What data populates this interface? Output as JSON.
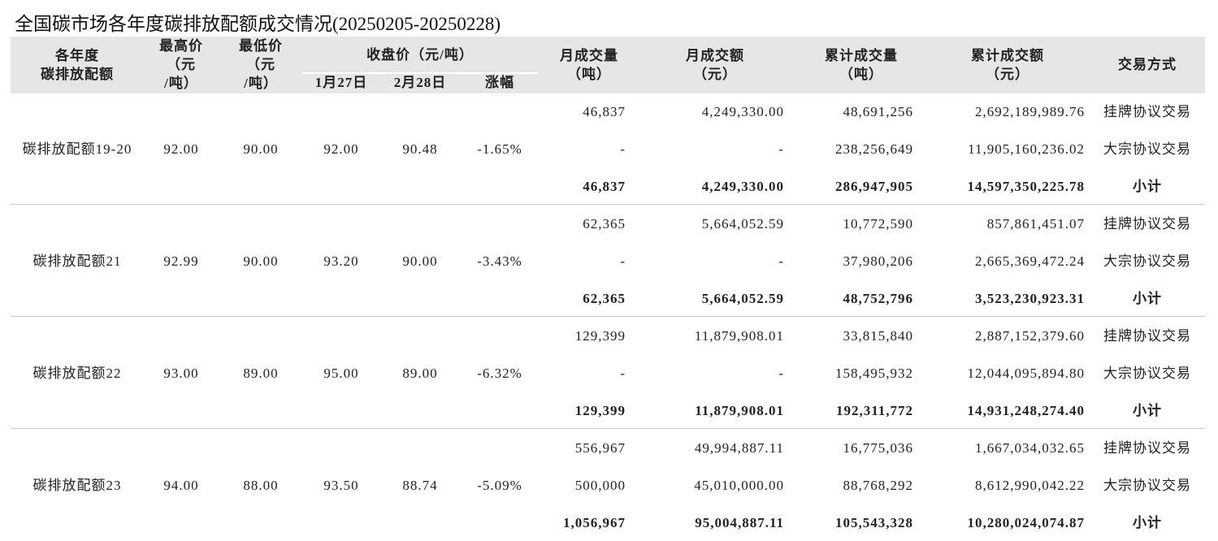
{
  "title": "全国碳市场各年度碳排放配额成交情况(20250205-20250228)",
  "header": {
    "columns": [
      [
        "各年度",
        "碳排放配额"
      ],
      [
        "最高价",
        "（元",
        "/吨）"
      ],
      [
        "最低价",
        "（元",
        "/吨）"
      ],
      [
        "月成交量",
        "（吨）"
      ],
      [
        "月成交额",
        "（元）"
      ],
      [
        "累计成交量",
        "（吨）"
      ],
      [
        "累计成交额",
        "（元）"
      ],
      [
        "交易方式"
      ]
    ],
    "close_group": "收盘价（元/吨）",
    "close_sub": [
      "1月27日",
      "2月28日",
      "涨幅"
    ]
  },
  "groups": [
    {
      "name": "碳排放配额19-20",
      "high": "92.00",
      "low": "90.00",
      "close_0127": "92.00",
      "close_0228": "90.48",
      "change": "-1.65%",
      "rows": [
        [
          "46,837",
          "4,249,330.00",
          "48,691,256",
          "2,692,189,989.76",
          "挂牌协议交易"
        ],
        [
          "-",
          "-",
          "238,256,649",
          "11,905,160,236.02",
          "大宗协议交易"
        ],
        [
          "46,837",
          "4,249,330.00",
          "286,947,905",
          "14,597,350,225.78",
          "小计"
        ]
      ]
    },
    {
      "name": "碳排放配额21",
      "high": "92.99",
      "low": "90.00",
      "close_0127": "93.20",
      "close_0228": "90.00",
      "change": "-3.43%",
      "rows": [
        [
          "62,365",
          "5,664,052.59",
          "10,772,590",
          "857,861,451.07",
          "挂牌协议交易"
        ],
        [
          "-",
          "-",
          "37,980,206",
          "2,665,369,472.24",
          "大宗协议交易"
        ],
        [
          "62,365",
          "5,664,052.59",
          "48,752,796",
          "3,523,230,923.31",
          "小计"
        ]
      ]
    },
    {
      "name": "碳排放配额22",
      "high": "93.00",
      "low": "89.00",
      "close_0127": "95.00",
      "close_0228": "89.00",
      "change": "-6.32%",
      "rows": [
        [
          "129,399",
          "11,879,908.01",
          "33,815,840",
          "2,887,152,379.60",
          "挂牌协议交易"
        ],
        [
          "-",
          "-",
          "158,495,932",
          "12,044,095,894.80",
          "大宗协议交易"
        ],
        [
          "129,399",
          "11,879,908.01",
          "192,311,772",
          "14,931,248,274.40",
          "小计"
        ]
      ]
    },
    {
      "name": "碳排放配额23",
      "high": "94.00",
      "low": "88.00",
      "close_0127": "93.50",
      "close_0228": "88.74",
      "change": "-5.09%",
      "rows": [
        [
          "556,967",
          "49,994,887.11",
          "16,775,036",
          "1,667,034,032.65",
          "挂牌协议交易"
        ],
        [
          "500,000",
          "45,010,000.00",
          "88,768,292",
          "8,612,990,042.22",
          "大宗协议交易"
        ],
        [
          "1,056,967",
          "95,004,887.11",
          "105,543,328",
          "10,280,024,074.87",
          "小计"
        ]
      ]
    }
  ]
}
